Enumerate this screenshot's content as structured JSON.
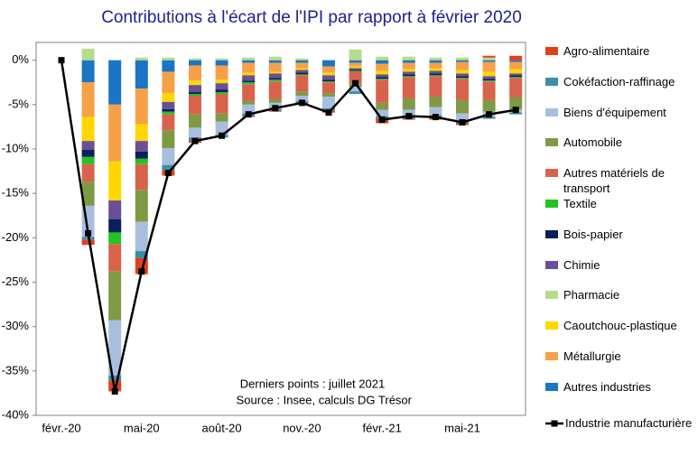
{
  "chart_data": {
    "type": "stacked-bar-line",
    "title": "Contributions à l'écart de l'IPI par rapport à février 2020",
    "annotations": [
      "Derniers points : juillet 2021",
      "Source : Insee, calculs DG Trésor"
    ],
    "categories": [
      "févr.-20",
      null,
      null,
      "mai-20",
      null,
      null,
      "août-20",
      null,
      null,
      "nov.-20",
      null,
      null,
      "févr.-21",
      null,
      null,
      "mai-21",
      null,
      null
    ],
    "ylim": [
      -40,
      2
    ],
    "yticks": [
      {
        "value": 0,
        "label": "0%"
      },
      {
        "value": -5,
        "label": "-5%"
      },
      {
        "value": -10,
        "label": "-10%"
      },
      {
        "value": -15,
        "label": "-15%"
      },
      {
        "value": -20,
        "label": "-20%"
      },
      {
        "value": -25,
        "label": "-25%"
      },
      {
        "value": -30,
        "label": "-30%"
      },
      {
        "value": -35,
        "label": "-35%"
      },
      {
        "value": -40,
        "label": "-40%"
      }
    ],
    "series": [
      {
        "name": "Agro-alimentaire",
        "color": "#e0401a",
        "values": [
          0,
          -0.6,
          -1.2,
          -1.8,
          -0.6,
          -0.2,
          0,
          -0.1,
          -0.1,
          -0.1,
          -0.2,
          0,
          -0.5,
          -0.1,
          -0.3,
          -0.2,
          0.2,
          0.5
        ]
      },
      {
        "name": "Cokéfaction-raffinage",
        "color": "#3a8fa8",
        "values": [
          0,
          -0.3,
          -0.6,
          -0.8,
          -0.6,
          -0.4,
          -0.3,
          -0.3,
          -0.2,
          -0.3,
          -0.3,
          -0.3,
          -0.3,
          -0.2,
          -0.2,
          -0.2,
          -0.2,
          -0.2
        ]
      },
      {
        "name": "Biens d'équipement",
        "color": "#a9bedf",
        "values": [
          0,
          -3.5,
          -6.2,
          -3.3,
          -1.9,
          -1.1,
          -1.5,
          -1.0,
          -0.7,
          -0.6,
          -1.3,
          -0.5,
          -0.7,
          -0.8,
          -0.9,
          -0.9,
          -0.6,
          -0.3
        ]
      },
      {
        "name": "Automobile",
        "color": "#7f9a45",
        "values": [
          0,
          -2.7,
          -5.5,
          -3.6,
          -2.0,
          -1.5,
          -0.9,
          -0.4,
          -0.4,
          -0.5,
          -0.4,
          -0.4,
          -0.8,
          -1.3,
          -1.2,
          -1.5,
          -1.3,
          -1.4
        ]
      },
      {
        "name": "Autres matériels de transport",
        "color": "#d8634c",
        "values": [
          0,
          -2.0,
          -3.1,
          -2.9,
          -1.8,
          -2.1,
          -2.2,
          -1.9,
          -2.0,
          -1.8,
          -1.2,
          -1.3,
          -2.6,
          -2.4,
          -2.3,
          -2.4,
          -2.1,
          -2.2
        ]
      },
      {
        "name": "Textile",
        "color": "#22c322",
        "values": [
          0,
          -0.8,
          -1.3,
          -0.6,
          -0.3,
          -0.2,
          -0.2,
          -0.2,
          -0.2,
          -0.1,
          -0.1,
          -0.1,
          -0.1,
          -0.1,
          -0.1,
          -0.1,
          -0.1,
          -0.1
        ]
      },
      {
        "name": "Bois-papier",
        "color": "#0b1f5c",
        "values": [
          0,
          -0.8,
          -1.5,
          -0.8,
          -0.3,
          -0.2,
          -0.3,
          -0.2,
          -0.2,
          -0.2,
          -0.2,
          -0.1,
          -0.2,
          -0.2,
          -0.2,
          -0.2,
          -0.2,
          -0.2
        ]
      },
      {
        "name": "Chimie",
        "color": "#6a4f96",
        "values": [
          0,
          -1.0,
          -2.1,
          -1.2,
          -0.8,
          -0.8,
          -0.7,
          -0.6,
          -0.5,
          -0.3,
          -0.5,
          -0.2,
          -0.3,
          -0.3,
          -0.3,
          -0.3,
          -0.3,
          -0.2
        ]
      },
      {
        "name": "Pharmacie",
        "color": "#b6dd8c",
        "values": [
          0,
          1.3,
          0,
          0.3,
          0.3,
          0.2,
          0.2,
          0.3,
          0.4,
          0.2,
          0,
          1.2,
          0.4,
          0.4,
          0.3,
          0.3,
          0.3,
          0
        ]
      },
      {
        "name": "Caoutchouc-plastique",
        "color": "#ffd700",
        "values": [
          0,
          -2.7,
          -4.4,
          -1.9,
          -1.0,
          -0.5,
          -0.4,
          -0.3,
          -0.2,
          -0.2,
          -0.3,
          -0.2,
          -0.4,
          -0.3,
          -0.3,
          -0.4,
          -0.5,
          -0.5
        ]
      },
      {
        "name": "Métallurgie",
        "color": "#f7a04a",
        "values": [
          0,
          -3.9,
          -6.4,
          -4.0,
          -2.4,
          -1.7,
          -1.6,
          -1.1,
          -1.0,
          -0.6,
          -0.7,
          -0.4,
          -0.8,
          -0.7,
          -0.6,
          -0.9,
          -1.1,
          -0.8
        ]
      },
      {
        "name": "Autres industries",
        "color": "#1b75c5",
        "values": [
          0,
          -2.5,
          -5.0,
          -3.2,
          -1.3,
          -0.6,
          -0.6,
          -0.3,
          -0.3,
          -0.3,
          -0.7,
          -0.3,
          -0.4,
          -0.3,
          -0.3,
          -0.2,
          -0.2,
          -0.2
        ]
      }
    ],
    "line": {
      "name": "Industrie manufacturière",
      "color": "#000000",
      "values": [
        0,
        -19.5,
        -37.3,
        -23.8,
        -12.7,
        -9.1,
        -8.5,
        -6.1,
        -5.4,
        -4.8,
        -5.9,
        -2.6,
        -6.7,
        -6.3,
        -6.4,
        -7.0,
        -6.1,
        -5.6
      ]
    }
  }
}
